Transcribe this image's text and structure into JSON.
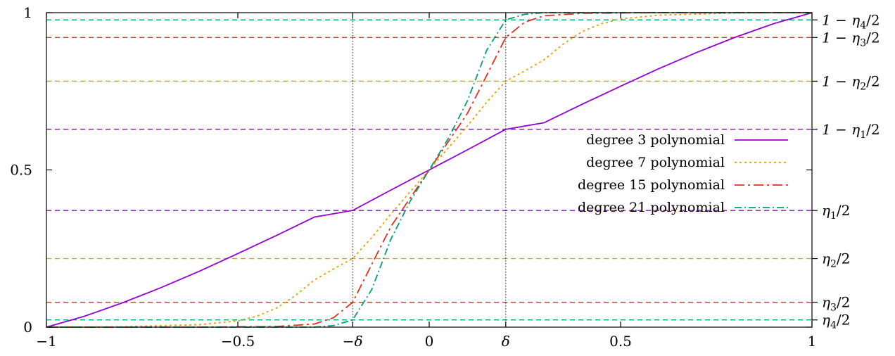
{
  "chart_data": {
    "type": "line",
    "title": "",
    "xlabel": "",
    "ylabel": "",
    "xlim": [
      -1,
      1
    ],
    "ylim": [
      0,
      1
    ],
    "grid": false,
    "legend_position": "center-right",
    "x_ticks": [
      {
        "value": -1,
        "label": "−1"
      },
      {
        "value": -0.5,
        "label": "−0.5"
      },
      {
        "value": -0.2,
        "label": "−δ"
      },
      {
        "value": 0,
        "label": "0"
      },
      {
        "value": 0.2,
        "label": "δ"
      },
      {
        "value": 0.5,
        "label": "0.5"
      },
      {
        "value": 1,
        "label": "1"
      }
    ],
    "y_ticks": [
      {
        "value": 0,
        "label": "0"
      },
      {
        "value": 0.5,
        "label": "0.5"
      },
      {
        "value": 1,
        "label": "1"
      }
    ],
    "vertical_markers": [
      -0.2,
      0.2
    ],
    "right_labels": [
      {
        "value": 0.977,
        "base": "1 − η",
        "sub": "4",
        "tail": "/2"
      },
      {
        "value": 0.921,
        "base": "1 − η",
        "sub": "3",
        "tail": "/2"
      },
      {
        "value": 0.782,
        "base": "1 − η",
        "sub": "2",
        "tail": "/2"
      },
      {
        "value": 0.629,
        "base": "1 − η",
        "sub": "1",
        "tail": "/2"
      },
      {
        "value": 0.371,
        "base": "η",
        "sub": "1",
        "tail": "/2"
      },
      {
        "value": 0.218,
        "base": "η",
        "sub": "2",
        "tail": "/2"
      },
      {
        "value": 0.079,
        "base": "η",
        "sub": "3",
        "tail": "/2"
      },
      {
        "value": 0.023,
        "base": "η",
        "sub": "4",
        "tail": "/2"
      }
    ],
    "series": [
      {
        "name": "degree 3 polynomial",
        "color": "#9400d3",
        "dash": "",
        "threshold_pair": [
          0.371,
          0.629
        ],
        "x": [
          -1,
          -0.9,
          -0.8,
          -0.7,
          -0.6,
          -0.5,
          -0.4,
          -0.3,
          -0.2,
          -0.1,
          0,
          0.1,
          0.2,
          0.3,
          0.4,
          0.5,
          0.6,
          0.7,
          0.8,
          0.9,
          1
        ],
        "y": [
          0,
          0.035,
          0.078,
          0.126,
          0.178,
          0.234,
          0.291,
          0.35,
          0.371,
          0.436,
          0.5,
          0.564,
          0.629,
          0.65,
          0.709,
          0.766,
          0.822,
          0.874,
          0.922,
          0.965,
          1
        ]
      },
      {
        "name": "degree 7 polynomial",
        "color": "#e69f00",
        "dash": "3,4",
        "threshold_pair": [
          0.218,
          0.782
        ],
        "x": [
          -1,
          -0.8,
          -0.6,
          -0.5,
          -0.45,
          -0.4,
          -0.35,
          -0.3,
          -0.25,
          -0.2,
          -0.15,
          -0.1,
          -0.05,
          0,
          0.05,
          0.1,
          0.15,
          0.2,
          0.25,
          0.3,
          0.35,
          0.4,
          0.45,
          0.5,
          0.6,
          0.8,
          1
        ],
        "y": [
          0,
          0.001,
          0.008,
          0.02,
          0.035,
          0.06,
          0.1,
          0.15,
          0.185,
          0.218,
          0.285,
          0.36,
          0.43,
          0.5,
          0.57,
          0.64,
          0.715,
          0.782,
          0.815,
          0.85,
          0.9,
          0.94,
          0.965,
          0.98,
          0.992,
          0.999,
          1
        ]
      },
      {
        "name": "degree 15 polynomial",
        "color": "#e0301e",
        "dash": "14,5,3,5",
        "threshold_pair": [
          0.079,
          0.921
        ],
        "x": [
          -1,
          -0.6,
          -0.4,
          -0.3,
          -0.25,
          -0.2,
          -0.15,
          -0.1,
          -0.05,
          0,
          0.05,
          0.1,
          0.15,
          0.2,
          0.25,
          0.3,
          0.4,
          0.6,
          1
        ],
        "y": [
          0,
          0.0,
          0.002,
          0.01,
          0.03,
          0.079,
          0.2,
          0.32,
          0.41,
          0.5,
          0.59,
          0.68,
          0.8,
          0.921,
          0.97,
          0.99,
          0.998,
          1,
          1
        ]
      },
      {
        "name": "degree 21 polynomial",
        "color": "#009e73",
        "dash": "10,4,2,4",
        "threshold_pair": [
          0.023,
          0.977
        ],
        "x": [
          -1,
          -0.5,
          -0.3,
          -0.25,
          -0.2,
          -0.15,
          -0.1,
          -0.05,
          0,
          0.05,
          0.1,
          0.15,
          0.2,
          0.25,
          0.3,
          0.5,
          1
        ],
        "y": [
          0,
          0,
          0.0,
          0.005,
          0.023,
          0.12,
          0.28,
          0.4,
          0.5,
          0.6,
          0.72,
          0.88,
          0.977,
          0.995,
          1,
          1,
          1
        ]
      }
    ]
  }
}
